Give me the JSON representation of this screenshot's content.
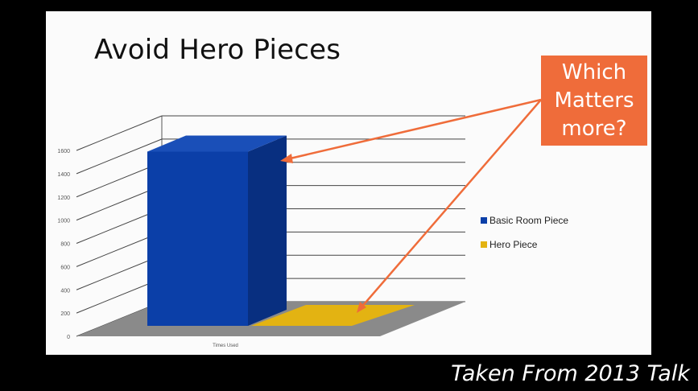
{
  "slide": {
    "title": "Avoid Hero Pieces",
    "callout": [
      "Which",
      "Matters",
      "more?"
    ],
    "caption": "Taken From 2013 Talk"
  },
  "colors": {
    "background": "#000000",
    "slide": "#fbfbfb",
    "callout": "#ef6c3a",
    "series_blue": "#0b3fa8",
    "series_yellow": "#e3b312",
    "floor": "#8a8a8a",
    "arrow": "#ef6c3a"
  },
  "chart_data": {
    "type": "bar",
    "categories": [
      "Times Used"
    ],
    "series": [
      {
        "name": "Basic Room Piece",
        "values": [
          1500
        ],
        "color": "#0b3fa8"
      },
      {
        "name": "Hero Piece",
        "values": [
          0
        ],
        "color": "#e3b312"
      }
    ],
    "ylim": [
      0,
      1600
    ],
    "yticks": [
      0,
      200,
      400,
      600,
      800,
      1000,
      1200,
      1400,
      1600
    ],
    "grid": true,
    "legend_position": "right",
    "three_d": true
  }
}
